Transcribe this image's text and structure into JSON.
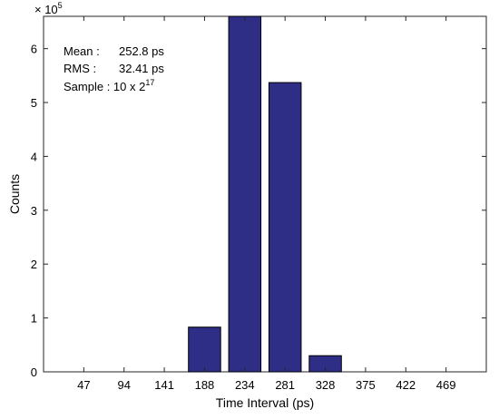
{
  "chart_data": {
    "type": "bar",
    "xlabel": "Time Interval (ps)",
    "ylabel": "Counts",
    "y_exponent_base": "× 10",
    "y_exponent_power": "5",
    "categories": [
      "47",
      "94",
      "141",
      "188",
      "234",
      "281",
      "328",
      "375",
      "422",
      "469"
    ],
    "values": [
      0,
      0,
      0,
      83000,
      660000,
      537000,
      30000,
      0,
      0,
      0
    ],
    "x_range": [
      0,
      11
    ],
    "ylim": [
      0,
      660000
    ],
    "yticks": [
      0,
      100000,
      200000,
      300000,
      400000,
      500000,
      600000
    ],
    "ytick_labels": [
      "0",
      "1",
      "2",
      "3",
      "4",
      "5",
      "6"
    ],
    "grid": false,
    "bar_color": "#2e2e86",
    "annotations": {
      "mean_label": "Mean :",
      "mean_value": "252.8 ps",
      "rms_label": "RMS :",
      "rms_value": "32.41 ps",
      "sample_label": "Sample : 10 x 2",
      "sample_power": "17"
    }
  }
}
